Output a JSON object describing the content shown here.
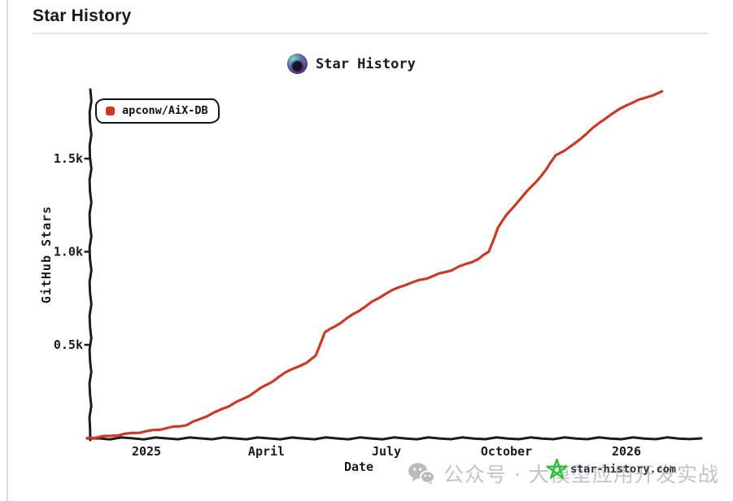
{
  "page": {
    "header_title": "Star History"
  },
  "chart": {
    "title": "Star History",
    "ink_color": "#1b1b1b",
    "accent_red": "#cb3927"
  },
  "watermarks": {
    "wechat_text": "公众号 · 大模型应用开发实战",
    "wechat_color": "#c2c5c8",
    "site_text": "star-history.com",
    "site_text_color": "#2f3134",
    "star_green": "#2ec135"
  },
  "chart_data": {
    "type": "line",
    "title": "Star History",
    "xlabel": "Date",
    "ylabel": "GitHub Stars",
    "grid": false,
    "legend_position": "top-left",
    "ylim": [
      0,
      1870
    ],
    "x_ticks": [
      {
        "label": "2025",
        "month_offset": 0
      },
      {
        "label": "April",
        "month_offset": 3
      },
      {
        "label": "July",
        "month_offset": 6
      },
      {
        "label": "October",
        "month_offset": 9
      },
      {
        "label": "2026",
        "month_offset": 12
      }
    ],
    "y_ticks": [
      {
        "label": "0.5k",
        "value": 500
      },
      {
        "label": "1.0k",
        "value": 1000
      },
      {
        "label": "1.5k",
        "value": 1500
      }
    ],
    "series": [
      {
        "name": "apconw/AiX-DB",
        "color": "#cb3927",
        "points": [
          [
            "2024-11-17",
            0
          ],
          [
            "2024-12-05",
            12
          ],
          [
            "2025-01-01",
            35
          ],
          [
            "2025-02-01",
            70
          ],
          [
            "2025-02-22",
            135
          ],
          [
            "2025-03-14",
            210
          ],
          [
            "2025-04-01",
            285
          ],
          [
            "2025-04-20",
            370
          ],
          [
            "2025-05-01",
            400
          ],
          [
            "2025-05-08",
            445
          ],
          [
            "2025-05-15",
            565
          ],
          [
            "2025-06-01",
            640
          ],
          [
            "2025-06-15",
            705
          ],
          [
            "2025-07-01",
            778
          ],
          [
            "2025-07-15",
            822
          ],
          [
            "2025-08-01",
            858
          ],
          [
            "2025-08-20",
            902
          ],
          [
            "2025-09-01",
            935
          ],
          [
            "2025-09-10",
            960
          ],
          [
            "2025-09-18",
            1000
          ],
          [
            "2025-09-25",
            1130
          ],
          [
            "2025-10-01",
            1195
          ],
          [
            "2025-10-10",
            1273
          ],
          [
            "2025-10-20",
            1348
          ],
          [
            "2025-11-01",
            1442
          ],
          [
            "2025-11-08",
            1518
          ],
          [
            "2025-11-15",
            1545
          ],
          [
            "2025-11-22",
            1577
          ],
          [
            "2025-12-01",
            1635
          ],
          [
            "2025-12-15",
            1715
          ],
          [
            "2026-01-01",
            1788
          ],
          [
            "2026-01-15",
            1826
          ],
          [
            "2026-01-28",
            1858
          ]
        ]
      }
    ]
  }
}
